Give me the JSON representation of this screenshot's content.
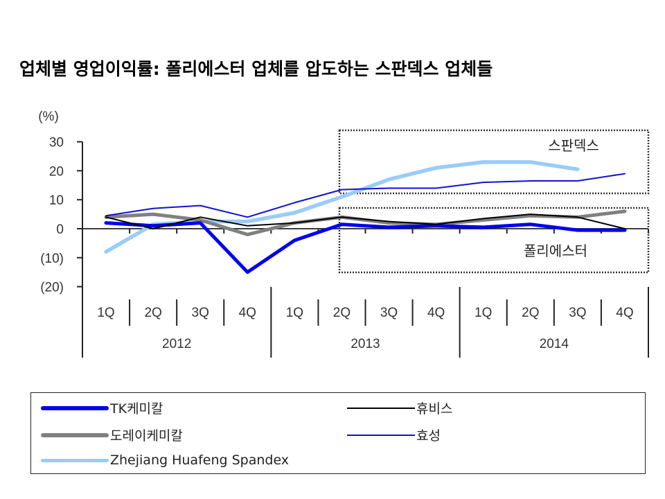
{
  "title": "업체별 영업이익률: 폴리에스터 업체를 압도하는 스판덱스 업체들",
  "chart_data": {
    "type": "line",
    "title": "업체별 영업이익률: 폴리에스터 업체를 압도하는 스판덱스 업체들",
    "ylabel": "(%)",
    "xlabel": "",
    "ylim": [
      -20,
      30
    ],
    "yticks": [
      30,
      20,
      10,
      0,
      -10,
      -20
    ],
    "ytick_labels": [
      "30",
      "20",
      "10",
      "0",
      "(10)",
      "(20)"
    ],
    "categories": [
      "1Q",
      "2Q",
      "3Q",
      "4Q",
      "1Q",
      "2Q",
      "3Q",
      "4Q",
      "1Q",
      "2Q",
      "3Q",
      "4Q"
    ],
    "years": [
      "2012",
      "2013",
      "2014"
    ],
    "grid": false,
    "legend_position": "bottom",
    "annotations": [
      {
        "text": "스판덱스",
        "region": "upper box 2013 2Q – 2014 4Q"
      },
      {
        "text": "폴리에스터",
        "region": "lower box 2013 2Q – 2014 4Q"
      }
    ],
    "series": [
      {
        "name": "TK케미칼",
        "color": "#0000ee",
        "width": "thick",
        "values": [
          2,
          1,
          2,
          -15,
          -4,
          1.5,
          0.5,
          1,
          0.5,
          1.5,
          -0.5,
          -0.5
        ]
      },
      {
        "name": "도레이케미칼",
        "color": "#808080",
        "width": "thick",
        "values": [
          4,
          5,
          3,
          -2,
          2,
          4,
          2,
          1.5,
          3,
          4.5,
          4,
          6
        ]
      },
      {
        "name": "Zhejiang Huafeng Spandex",
        "color": "#99ccf8",
        "width": "thick",
        "values": [
          -8,
          1.5,
          2.5,
          2.5,
          5.5,
          11,
          17,
          21,
          23,
          23,
          20.5,
          null
        ]
      },
      {
        "name": "휴비스",
        "color": "#000000",
        "width": "thin",
        "values": [
          4,
          0,
          4,
          1,
          2,
          4,
          2.5,
          1.5,
          3.5,
          5,
          4,
          0
        ]
      },
      {
        "name": "효성",
        "color": "#1010d0",
        "width": "thin",
        "values": [
          4.5,
          7,
          8,
          4,
          9,
          13.5,
          14,
          14,
          16,
          16.5,
          16.5,
          19
        ]
      }
    ]
  },
  "legend": [
    {
      "label": "TK케미칼",
      "color": "#0000ee"
    },
    {
      "label": "휴비스",
      "color": "#000000"
    },
    {
      "label": "도레이케미칼",
      "color": "#808080"
    },
    {
      "label": "효성",
      "color": "#1010d0"
    },
    {
      "label": "Zhejiang Huafeng Spandex",
      "color": "#99ccf8"
    }
  ]
}
